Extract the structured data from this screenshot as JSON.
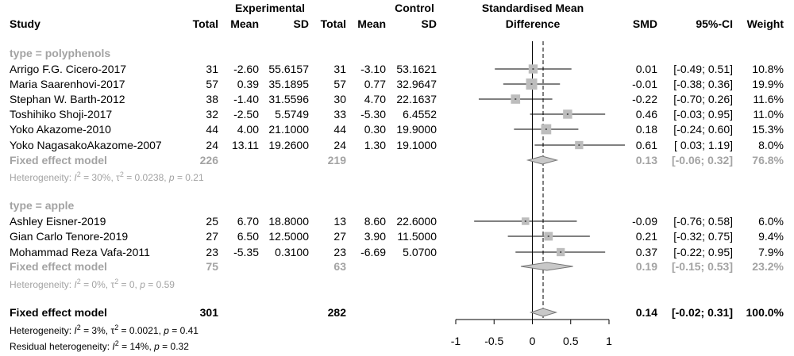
{
  "headers": {
    "study": "Study",
    "experimental": "Experimental",
    "control": "Control",
    "total_exp": "Total",
    "mean_exp": "Mean",
    "sd_exp": "SD",
    "total_ctl": "Total",
    "mean_ctl": "Mean",
    "sd_ctl": "SD",
    "smd_title_1": "Standardised Mean",
    "smd_title_2": "Difference",
    "smd": "SMD",
    "ci": "95%-CI",
    "weight": "Weight"
  },
  "groups": [
    {
      "label": "type = polyphenols",
      "studies": [
        {
          "study": "Arrigo F.G. Cicero-2017",
          "n_e": "31",
          "mean_e": "-2.60",
          "sd_e": "55.6157",
          "n_c": "31",
          "mean_c": "-3.10",
          "sd_c": "53.1621",
          "smd_text": "0.01",
          "ci_text": "[-0.49; 0.51]",
          "weight_text": "10.8%"
        },
        {
          "study": "Maria Saarenhovi-2017",
          "n_e": "57",
          "mean_e": "0.39",
          "sd_e": "35.1895",
          "n_c": "57",
          "mean_c": "0.77",
          "sd_c": "32.9647",
          "smd_text": "-0.01",
          "ci_text": "[-0.38; 0.36]",
          "weight_text": "19.9%"
        },
        {
          "study": "Stephan W. Barth-2012",
          "n_e": "38",
          "mean_e": "-1.40",
          "sd_e": "31.5596",
          "n_c": "30",
          "mean_c": "4.70",
          "sd_c": "22.1637",
          "smd_text": "-0.22",
          "ci_text": "[-0.70; 0.26]",
          "weight_text": "11.6%"
        },
        {
          "study": "Toshihiko Shoji-2017",
          "n_e": "32",
          "mean_e": "-2.50",
          "sd_e": "5.5749",
          "n_c": "33",
          "mean_c": "-5.30",
          "sd_c": "6.4552",
          "smd_text": "0.46",
          "ci_text": "[-0.03; 0.95]",
          "weight_text": "11.0%"
        },
        {
          "study": "Yoko Akazome-2010",
          "n_e": "44",
          "mean_e": "4.00",
          "sd_e": "21.1000",
          "n_c": "44",
          "mean_c": "0.30",
          "sd_c": "19.9000",
          "smd_text": "0.18",
          "ci_text": "[-0.24; 0.60]",
          "weight_text": "15.3%"
        },
        {
          "study": "Yoko NagasakoAkazome-2007",
          "n_e": "24",
          "mean_e": "13.11",
          "sd_e": "19.2600",
          "n_c": "24",
          "mean_c": "1.30",
          "sd_c": "19.1000",
          "smd_text": "0.61",
          "ci_text": "[ 0.03; 1.19]",
          "weight_text": "8.0%"
        }
      ],
      "fixed": {
        "label": "Fixed effect model",
        "n_e": "226",
        "n_c": "219",
        "smd_text": "0.13",
        "ci_text": "[-0.06; 0.32]",
        "weight_text": "76.8%"
      },
      "heterogeneity": "Heterogeneity: I² = 30%, τ² = 0.0238, p = 0.21"
    },
    {
      "label": "type = apple",
      "studies": [
        {
          "study": "Ashley Eisner-2019",
          "n_e": "25",
          "mean_e": "6.70",
          "sd_e": "18.8000",
          "n_c": "13",
          "mean_c": "8.60",
          "sd_c": "22.6000",
          "smd_text": "-0.09",
          "ci_text": "[-0.76; 0.58]",
          "weight_text": "6.0%"
        },
        {
          "study": "Gian Carlo Tenore-2019",
          "n_e": "27",
          "mean_e": "6.50",
          "sd_e": "12.5000",
          "n_c": "27",
          "mean_c": "3.90",
          "sd_c": "11.5000",
          "smd_text": "0.21",
          "ci_text": "[-0.32; 0.75]",
          "weight_text": "9.4%"
        },
        {
          "study": "Mohammad Reza Vafa-2011",
          "n_e": "23",
          "mean_e": "-5.35",
          "sd_e": "0.3100",
          "n_c": "23",
          "mean_c": "-6.69",
          "sd_c": "5.0700",
          "smd_text": "0.37",
          "ci_text": "[-0.22; 0.95]",
          "weight_text": "7.9%"
        }
      ],
      "fixed": {
        "label": "Fixed effect model",
        "n_e": "75",
        "n_c": "63",
        "smd_text": "0.19",
        "ci_text": "[-0.15; 0.53]",
        "weight_text": "23.2%"
      },
      "heterogeneity": "Heterogeneity: I² = 0%, τ² = 0, p = 0.59"
    }
  ],
  "overall": {
    "label": "Fixed effect model",
    "n_e": "301",
    "n_c": "282",
    "smd_text": "0.14",
    "ci_text": "[-0.02; 0.31]",
    "weight_text": "100.0%"
  },
  "overall_heterogeneity": "Heterogeneity: I² = 3%, τ² = 0.0021, p = 0.41",
  "residual_heterogeneity": "Residual heterogeneity: I² = 14%, p = 0.32",
  "colors": {
    "text": "#000000",
    "subgroup_text": "#a3a3a3",
    "square": "#bdbdbd",
    "diamond_subgroup": "#c8c8c8",
    "diamond_overall": "#c8c8c8"
  },
  "chart_data": {
    "type": "forest",
    "xlabel": "",
    "xlim": [
      -1,
      1
    ],
    "ticks": [
      -1,
      -0.5,
      0,
      0.5,
      1
    ],
    "tick_labels": [
      "-1",
      "-0.5",
      "0",
      "0.5",
      "1"
    ],
    "reference_line": 0,
    "overall_dashed_line": 0.14,
    "studies": [
      {
        "study": "Arrigo F.G. Cicero-2017",
        "smd": 0.01,
        "lower": -0.49,
        "upper": 0.51,
        "weight": 10.8
      },
      {
        "study": "Maria Saarenhovi-2017",
        "smd": -0.01,
        "lower": -0.38,
        "upper": 0.36,
        "weight": 19.9
      },
      {
        "study": "Stephan W. Barth-2012",
        "smd": -0.22,
        "lower": -0.7,
        "upper": 0.26,
        "weight": 11.6
      },
      {
        "study": "Toshihiko Shoji-2017",
        "smd": 0.46,
        "lower": -0.03,
        "upper": 0.95,
        "weight": 11.0
      },
      {
        "study": "Yoko Akazome-2010",
        "smd": 0.18,
        "lower": -0.24,
        "upper": 0.6,
        "weight": 15.3
      },
      {
        "study": "Yoko NagasakoAkazome-2007",
        "smd": 0.61,
        "lower": 0.03,
        "upper": 1.19,
        "weight": 8.0
      },
      {
        "study": "Ashley Eisner-2019",
        "smd": -0.09,
        "lower": -0.76,
        "upper": 0.58,
        "weight": 6.0
      },
      {
        "study": "Gian Carlo Tenore-2019",
        "smd": 0.21,
        "lower": -0.32,
        "upper": 0.75,
        "weight": 9.4
      },
      {
        "study": "Mohammad Reza Vafa-2011",
        "smd": 0.37,
        "lower": -0.22,
        "upper": 0.95,
        "weight": 7.9
      }
    ],
    "subgroup_summaries": [
      {
        "label": "type = polyphenols",
        "smd": 0.13,
        "lower": -0.06,
        "upper": 0.32,
        "weight": 76.8
      },
      {
        "label": "type = apple",
        "smd": 0.19,
        "lower": -0.15,
        "upper": 0.53,
        "weight": 23.2
      }
    ],
    "overall": {
      "smd": 0.14,
      "lower": -0.02,
      "upper": 0.31,
      "weight": 100.0
    }
  }
}
